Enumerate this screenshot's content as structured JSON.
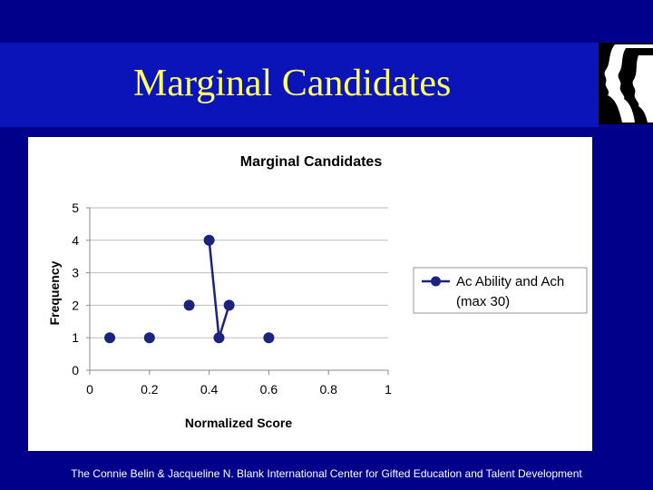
{
  "slide": {
    "title": "Marginal Candidates",
    "footer": "The Connie Belin & Jacqueline N. Blank International Center for Gifted Education and Talent Development"
  },
  "colors": {
    "background": "#00008b",
    "title_band": "#0a14b8",
    "title_text": "#ffff66",
    "series": "#1a237e"
  },
  "chart_data": {
    "type": "line",
    "title": "Marginal Candidates",
    "xlabel": "Normalized Score",
    "ylabel": "Frequency",
    "xlim": [
      0,
      1
    ],
    "ylim": [
      0,
      5
    ],
    "xticks": [
      0,
      0.2,
      0.4,
      0.6,
      0.8,
      1
    ],
    "yticks": [
      0,
      1,
      2,
      3,
      4,
      5
    ],
    "xtick_labels": [
      "0",
      "0.2",
      "0.4",
      "0.6",
      "0.8",
      "1"
    ],
    "ytick_labels": [
      "0",
      "1",
      "2",
      "3",
      "4",
      "5"
    ],
    "grid": "horizontal",
    "legend_position": "right",
    "series": [
      {
        "name": "Ac Ability and Ach (max 30)",
        "legend_lines": [
          "Ac Ability and Ach",
          "(max 30)"
        ],
        "x": [
          0.067,
          0.2,
          0.333,
          0.4,
          0.433,
          0.467,
          0.6
        ],
        "y": [
          1,
          1,
          2,
          4,
          1,
          2,
          1
        ],
        "connected_segments": [
          [
            3,
            4
          ],
          [
            4,
            5
          ]
        ]
      }
    ]
  }
}
